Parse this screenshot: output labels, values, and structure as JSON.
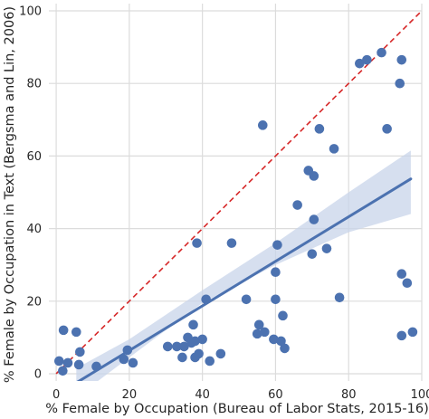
{
  "chart_data": {
    "type": "scatter",
    "xlabel": "% Female by Occupation (Bureau of Labor Stats, 2015-16)",
    "ylabel": "% Female by Occupation in Text (Bergsma and Lin, 2006)",
    "xlim": [
      -2,
      100
    ],
    "ylim": [
      -2,
      102
    ],
    "xticks": [
      "0",
      "20",
      "40",
      "60",
      "80",
      "100"
    ],
    "yticks": [
      "0",
      "20",
      "40",
      "60",
      "80",
      "100"
    ],
    "grid": true,
    "colors": {
      "points": "#4c72b0",
      "fit": "#4c72b0",
      "band": "#c8d4ea",
      "diagonal": "#d62728",
      "grid": "#dcdcdc"
    },
    "reference_line": {
      "style": "dashed",
      "from": [
        0,
        0
      ],
      "to": [
        100,
        100
      ]
    },
    "regression": {
      "x": [
        5.5,
        97
      ],
      "y": [
        -2.5,
        53.7
      ]
    },
    "confidence_band": {
      "x": [
        5.5,
        20,
        40,
        60,
        80,
        97
      ],
      "lower": [
        -6.5,
        4.5,
        19.5,
        30,
        39,
        44
      ],
      "upper": [
        1.5,
        9.5,
        23,
        36,
        50,
        61.5
      ]
    },
    "points": [
      {
        "x": 0.8,
        "y": 3.5
      },
      {
        "x": 1.8,
        "y": 0.8
      },
      {
        "x": 2,
        "y": 12
      },
      {
        "x": 3.2,
        "y": 3
      },
      {
        "x": 5.5,
        "y": 11.5
      },
      {
        "x": 6.5,
        "y": 6
      },
      {
        "x": 6.2,
        "y": 2.5
      },
      {
        "x": 11,
        "y": 2
      },
      {
        "x": 18.5,
        "y": 4
      },
      {
        "x": 19.5,
        "y": 6.5
      },
      {
        "x": 21,
        "y": 3
      },
      {
        "x": 30.5,
        "y": 7.5
      },
      {
        "x": 33,
        "y": 7.5
      },
      {
        "x": 34.5,
        "y": 4.5
      },
      {
        "x": 35,
        "y": 7.5
      },
      {
        "x": 36,
        "y": 10
      },
      {
        "x": 37,
        "y": 8.5
      },
      {
        "x": 37.5,
        "y": 13.5
      },
      {
        "x": 38,
        "y": 9
      },
      {
        "x": 38,
        "y": 4.5
      },
      {
        "x": 38.5,
        "y": 36
      },
      {
        "x": 39,
        "y": 5.5
      },
      {
        "x": 40,
        "y": 9.5
      },
      {
        "x": 41,
        "y": 20.5
      },
      {
        "x": 42,
        "y": 3.5
      },
      {
        "x": 45,
        "y": 5.5
      },
      {
        "x": 48,
        "y": 36
      },
      {
        "x": 52,
        "y": 20.5
      },
      {
        "x": 55,
        "y": 11
      },
      {
        "x": 55.5,
        "y": 13.5
      },
      {
        "x": 56.5,
        "y": 68.5
      },
      {
        "x": 57,
        "y": 11.5
      },
      {
        "x": 59.5,
        "y": 9.5
      },
      {
        "x": 60,
        "y": 20.5
      },
      {
        "x": 60,
        "y": 28
      },
      {
        "x": 60.5,
        "y": 35.5
      },
      {
        "x": 61.5,
        "y": 9
      },
      {
        "x": 62,
        "y": 16
      },
      {
        "x": 62.5,
        "y": 7
      },
      {
        "x": 66,
        "y": 46.5
      },
      {
        "x": 69,
        "y": 56
      },
      {
        "x": 70,
        "y": 33
      },
      {
        "x": 70.5,
        "y": 42.5
      },
      {
        "x": 70.5,
        "y": 54.5
      },
      {
        "x": 72,
        "y": 67.5
      },
      {
        "x": 74,
        "y": 34.5
      },
      {
        "x": 76,
        "y": 62
      },
      {
        "x": 77.5,
        "y": 21
      },
      {
        "x": 83,
        "y": 85.5
      },
      {
        "x": 85,
        "y": 86.5
      },
      {
        "x": 89,
        "y": 88.5
      },
      {
        "x": 90.5,
        "y": 67.5
      },
      {
        "x": 94,
        "y": 80
      },
      {
        "x": 94.5,
        "y": 86.5
      },
      {
        "x": 94.5,
        "y": 27.5
      },
      {
        "x": 94.5,
        "y": 10.5
      },
      {
        "x": 96,
        "y": 25
      },
      {
        "x": 97.5,
        "y": 11.5
      }
    ]
  }
}
